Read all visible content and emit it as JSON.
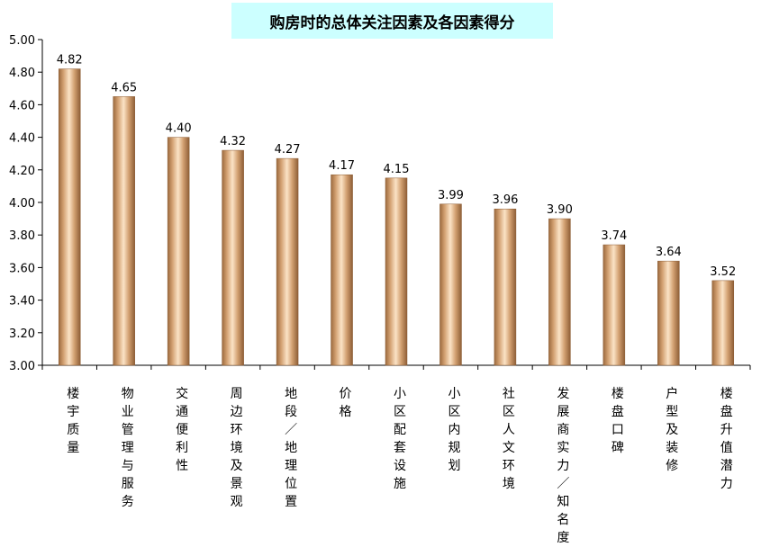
{
  "chart_data": {
    "type": "bar",
    "title": "购房时的总体关注因素及各因素得分",
    "categories": [
      "楼宇质量",
      "物业管理与服务",
      "交通便利性",
      "周边环境及景观",
      "地段／地理位置",
      "价格",
      "小区配套设施",
      "小区内规划",
      "社区人文环境",
      "发展商实力／知名度",
      "楼盘口碑",
      "户型及装修",
      "楼盘升值潜力"
    ],
    "values": [
      4.82,
      4.65,
      4.4,
      4.32,
      4.27,
      4.17,
      4.15,
      3.99,
      3.96,
      3.9,
      3.74,
      3.64,
      3.52
    ],
    "value_labels": [
      "4.82",
      "4.65",
      "4.40",
      "4.32",
      "4.27",
      "4.17",
      "4.15",
      "3.99",
      "3.96",
      "3.90",
      "3.74",
      "3.64",
      "3.52"
    ],
    "ylim": [
      3.0,
      5.0
    ],
    "yticks": [
      "3.00",
      "3.20",
      "3.40",
      "3.60",
      "3.80",
      "4.00",
      "4.20",
      "4.40",
      "4.60",
      "4.80",
      "5.00"
    ],
    "grid": false,
    "legend": "none",
    "bar_color": "#d9a878"
  }
}
